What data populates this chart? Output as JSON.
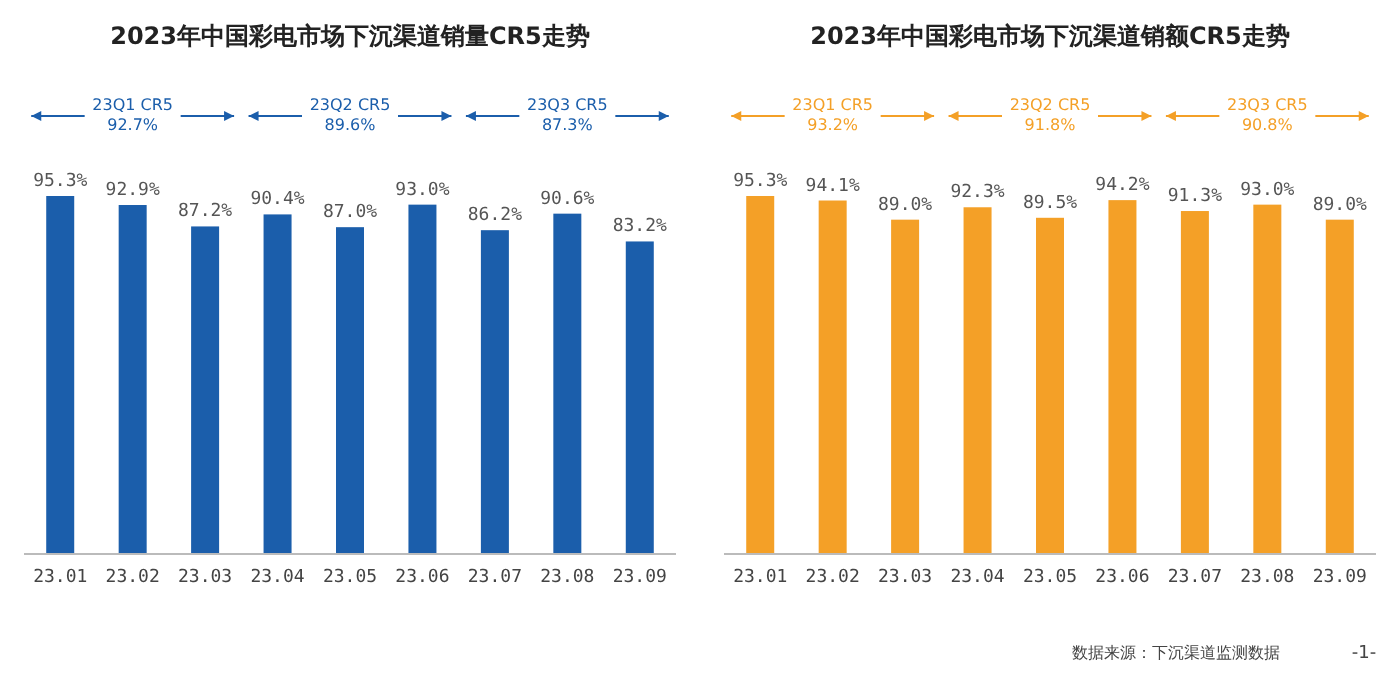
{
  "chart_data": [
    {
      "type": "bar",
      "title": "2023年中国彩电市场下沉渠道销量CR5走势",
      "categories": [
        "23.01",
        "23.02",
        "23.03",
        "23.04",
        "23.05",
        "23.06",
        "23.07",
        "23.08",
        "23.09"
      ],
      "values": [
        95.3,
        92.9,
        87.2,
        90.4,
        87.0,
        93.0,
        86.2,
        90.6,
        83.2
      ],
      "value_labels": [
        "95.3%",
        "92.9%",
        "87.2%",
        "90.4%",
        "87.0%",
        "93.0%",
        "86.2%",
        "90.6%",
        "83.2%"
      ],
      "color": "#1b5eab",
      "tick_labels": "x",
      "annotations": [
        "23Q1 CR5 92.7%",
        "23Q2 CR5 89.6%",
        "23Q3 CR5 87.3%"
      ]
    },
    {
      "type": "bar",
      "title": "2023年中国彩电市场下沉渠道销额CR5走势",
      "categories": [
        "23.01",
        "23.02",
        "23.03",
        "23.04",
        "23.05",
        "23.06",
        "23.07",
        "23.08",
        "23.09"
      ],
      "values": [
        95.3,
        94.1,
        89.0,
        92.3,
        89.5,
        94.2,
        91.3,
        93.0,
        89.0
      ],
      "value_labels": [
        "95.3%",
        "94.1%",
        "89.0%",
        "92.3%",
        "89.5%",
        "94.2%",
        "91.3%",
        "93.0%",
        "89.0%"
      ],
      "color": "#f4a027",
      "tick_labels": "x",
      "annotations": [
        "23Q1 CR5 93.2%",
        "23Q2 CR5 91.8%",
        "23Q3 CR5 90.8%",
        "数据来源：下沉渠道监测数据",
        "-1-"
      ]
    }
  ]
}
